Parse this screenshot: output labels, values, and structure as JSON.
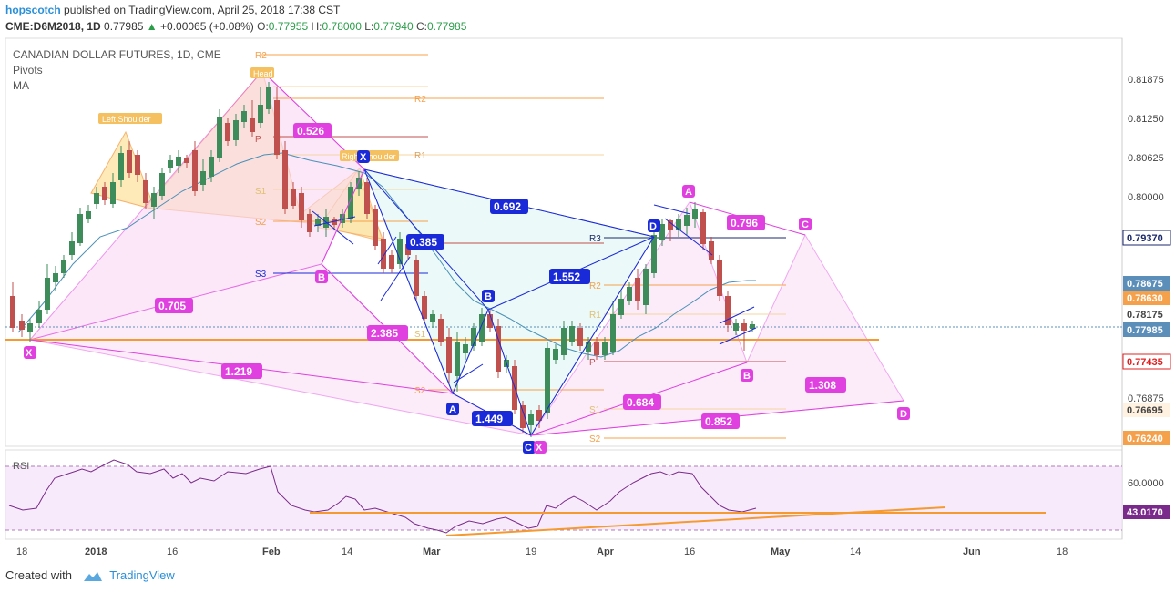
{
  "header": {
    "user": "hopscotch",
    "published_text": "published on TradingView.com, April 25, 2018 17:38 CST",
    "symbol": "CME:D6M2018, 1D",
    "last": "0.77985",
    "change_arrow": "▲",
    "change": "+0.00065 (+0.08%)",
    "o_label": "O:",
    "o": "0.77955",
    "h_label": "H:",
    "h": "0.78000",
    "l_label": "L:",
    "l": "0.77940",
    "c_label": "C:",
    "c": "0.77985"
  },
  "chart_info": {
    "title": "CANADIAN DOLLAR FUTURES, 1D, CME",
    "indicator1": "Pivots",
    "indicator2": "MA"
  },
  "price_axis": {
    "ticks": [
      "0.81875",
      "0.81250",
      "0.80625",
      "0.80000",
      "0.76875"
    ],
    "badges": [
      {
        "text": "0.79370",
        "bg": "#ffffff",
        "fg": "#1b2a6b",
        "border": "#1b2a6b"
      },
      {
        "text": "0.78675",
        "bg": "#5b8fb9",
        "fg": "#ffffff"
      },
      {
        "text": "0.78630",
        "bg": "#f5a04a",
        "fg": "#ffffff"
      },
      {
        "text": "0.78175",
        "bg": "#ffffff",
        "fg": "#444444"
      },
      {
        "text": "0.77985",
        "bg": "#5b8fb9",
        "fg": "#ffffff"
      },
      {
        "text": "0.77435",
        "bg": "#ffffff",
        "fg": "#e02020"
      },
      {
        "text": "0.76695",
        "bg": "#fff2e0",
        "fg": "#444444"
      },
      {
        "text": "0.76240",
        "bg": "#f5a04a",
        "fg": "#ffffff"
      }
    ]
  },
  "rsi": {
    "title": "RSI",
    "ticks": [
      "60.0000"
    ],
    "badge": "43.0170"
  },
  "time_axis": [
    "18",
    "2018",
    "16",
    "Feb",
    "14",
    "Mar",
    "19",
    "Apr",
    "16",
    "May",
    "14",
    "Jun",
    "18"
  ],
  "pivots": [
    "R2",
    "R2",
    "P",
    "R1",
    "S1",
    "S2",
    "S3",
    "R3",
    "R2",
    "R1",
    "P",
    "S1",
    "S2",
    "S2",
    "S1"
  ],
  "pattern_labels": {
    "left_shoulder": "Left Shoulder",
    "head": "Head",
    "right_shoulder": "Right Shoulder",
    "points": [
      "X",
      "B",
      "X",
      "A",
      "B",
      "C",
      "X",
      "D",
      "A",
      "B",
      "C",
      "D",
      "C"
    ]
  },
  "ratios": [
    "0.526",
    "0.692",
    "0.385",
    "0.705",
    "1.552",
    "2.385",
    "1.219",
    "1.449",
    "0.796",
    "0.684",
    "0.852",
    "1.308"
  ],
  "footer": {
    "created": "Created with",
    "brand": "TradingView"
  },
  "colors": {
    "up": "#3d8c5a",
    "down": "#c0504d",
    "pink": "#e040e0",
    "blue": "#1a2ad8",
    "orange": "#f59a30"
  }
}
